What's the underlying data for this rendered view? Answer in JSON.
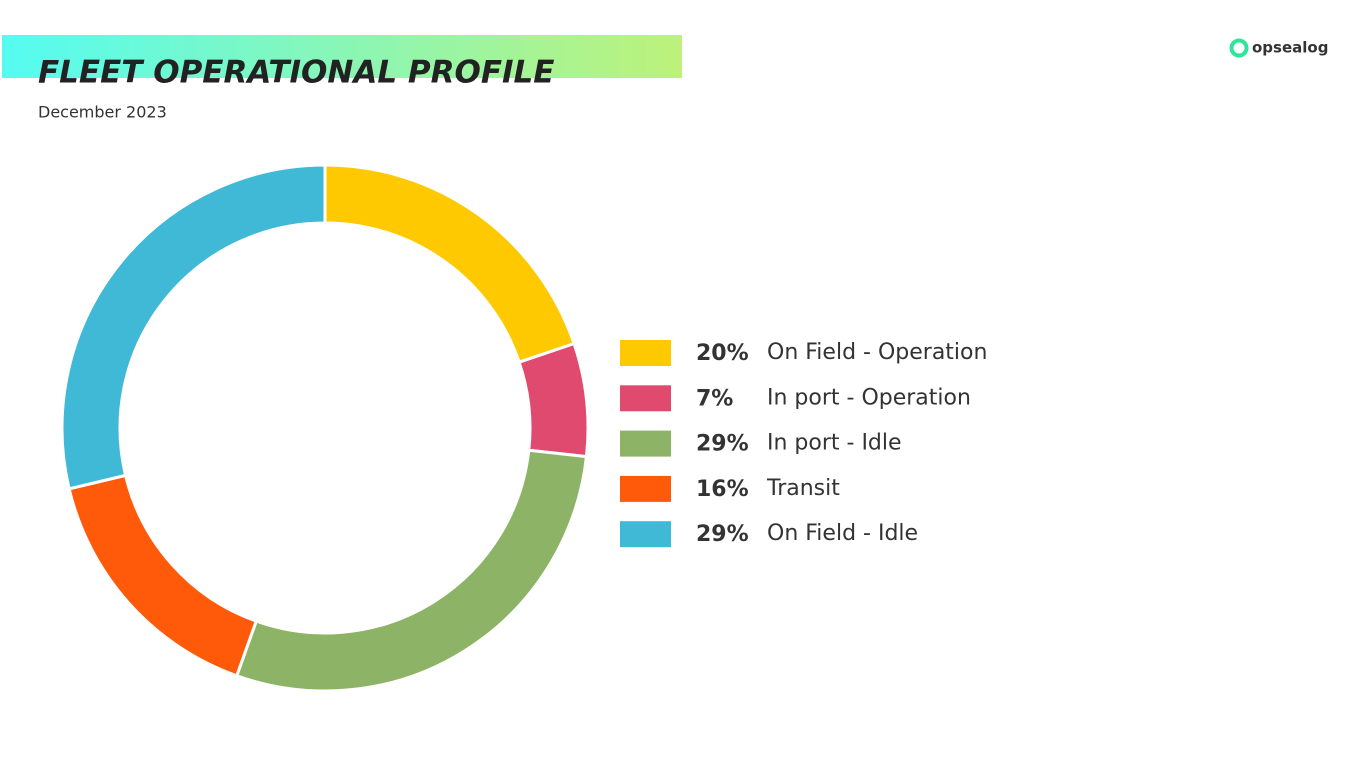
{
  "brand": "opsealog",
  "chart_data": {
    "type": "donut",
    "title": "FLEET OPERATIONAL PROFILE",
    "subtitle": "December 2023",
    "categories": [
      "On Field - Operation",
      "In port - Operation",
      "In port - Idle",
      "Transit",
      "On  Field - Idle"
    ],
    "values": [
      20,
      7,
      29,
      16,
      29
    ],
    "value_labels": [
      "20%",
      "7%",
      "29%",
      "16%",
      "29%"
    ],
    "colors": [
      "#ffc900",
      "#e04a6e",
      "#8db366",
      "#ff5a0a",
      "#40b9d6"
    ],
    "legend": "right"
  }
}
